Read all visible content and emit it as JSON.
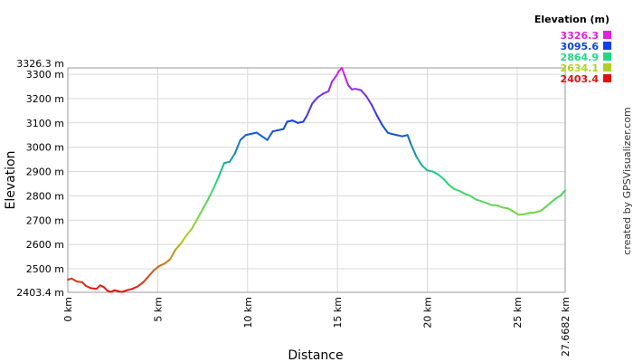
{
  "chart_data": {
    "type": "line",
    "title": "",
    "xlabel": "Distance",
    "ylabel": "Elevation",
    "credit": "created by GPSVisualizer.com",
    "x_unit": "km",
    "xlim": [
      0,
      27.6682
    ],
    "ylim": [
      2403.4,
      3326.3
    ],
    "x_ticks": [
      0,
      5,
      10,
      15,
      20,
      25
    ],
    "x_end_label": "27.6682 km",
    "y_ticks": [
      2500,
      2600,
      2700,
      2800,
      2900,
      3000,
      3100,
      3200,
      3300
    ],
    "y_min_label": "2403.4 m",
    "y_max_label": "3326.3 m",
    "grid": true,
    "legend": {
      "title": "Elevation (m)",
      "placement": "top-right",
      "entries": [
        {
          "value": "3326.3",
          "color": "#e020e0"
        },
        {
          "value": "3095.6",
          "color": "#1040e0"
        },
        {
          "value": "2864.9",
          "color": "#20d880"
        },
        {
          "value": "2634.1",
          "color": "#b0d020"
        },
        {
          "value": "2403.4",
          "color": "#e01010"
        }
      ]
    },
    "series": [
      {
        "x": [
          0,
          0.2,
          0.5,
          0.8,
          1.0,
          1.3,
          1.6,
          1.8,
          2.0,
          2.2,
          2.4,
          2.6,
          2.8,
          3.0,
          3.3,
          3.6,
          3.9,
          4.2,
          4.5,
          4.8,
          5.1,
          5.4,
          5.7,
          6.0,
          6.3,
          6.6,
          6.9,
          7.2,
          7.5,
          7.8,
          8.1,
          8.4,
          8.7,
          9.0,
          9.3,
          9.6,
          9.9,
          10.2,
          10.5,
          10.8,
          11.1,
          11.4,
          11.7,
          12.0,
          12.2,
          12.5,
          12.8,
          13.1,
          13.3,
          13.6,
          13.9,
          14.2,
          14.5,
          14.7,
          14.9,
          15.1,
          15.25,
          15.4,
          15.6,
          15.8,
          16.0,
          16.3,
          16.6,
          16.9,
          17.2,
          17.5,
          17.8,
          18.0,
          18.3,
          18.6,
          18.9,
          19.1,
          19.4,
          19.7,
          20.0,
          20.3,
          20.6,
          20.9,
          21.2,
          21.5,
          21.8,
          22.1,
          22.4,
          22.7,
          23.0,
          23.3,
          23.6,
          23.9,
          24.2,
          24.5,
          24.8,
          25.1,
          25.4,
          25.7,
          26.0,
          26.3,
          26.6,
          26.9,
          27.2,
          27.4,
          27.6682
        ],
        "y": [
          2455,
          2460,
          2448,
          2445,
          2430,
          2420,
          2418,
          2432,
          2425,
          2410,
          2405,
          2412,
          2408,
          2405,
          2412,
          2418,
          2428,
          2445,
          2470,
          2495,
          2512,
          2522,
          2540,
          2580,
          2605,
          2638,
          2665,
          2705,
          2745,
          2785,
          2830,
          2880,
          2935,
          2940,
          2975,
          3030,
          3050,
          3055,
          3060,
          3045,
          3030,
          3065,
          3070,
          3075,
          3105,
          3110,
          3100,
          3105,
          3130,
          3180,
          3205,
          3220,
          3230,
          3270,
          3290,
          3315,
          3326,
          3295,
          3255,
          3238,
          3240,
          3235,
          3210,
          3175,
          3130,
          3090,
          3060,
          3055,
          3050,
          3045,
          3050,
          3010,
          2960,
          2925,
          2905,
          2900,
          2888,
          2870,
          2845,
          2828,
          2820,
          2808,
          2800,
          2785,
          2778,
          2770,
          2762,
          2760,
          2752,
          2748,
          2735,
          2722,
          2725,
          2730,
          2732,
          2738,
          2755,
          2775,
          2792,
          2800,
          2823
        ]
      }
    ]
  }
}
